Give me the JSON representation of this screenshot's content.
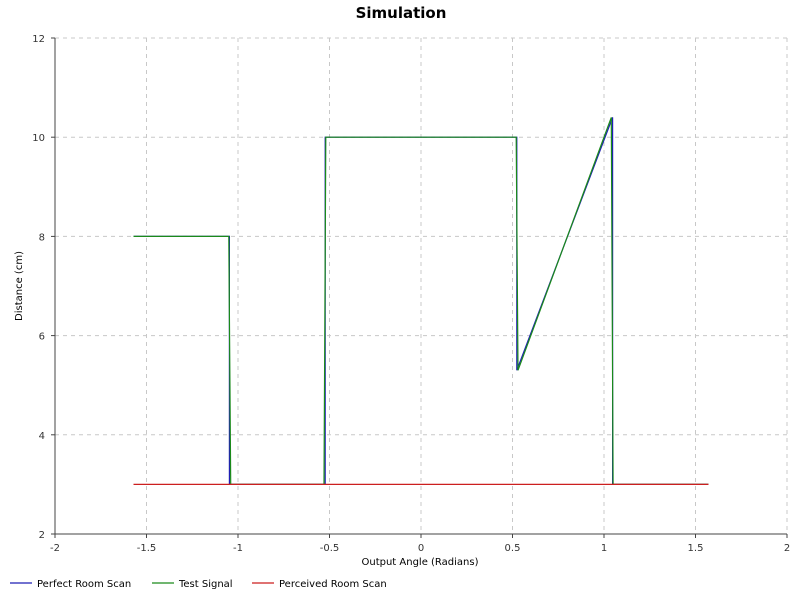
{
  "chart_data": {
    "type": "line",
    "title": "Simulation",
    "xlabel": "Output Angle (Radians)",
    "ylabel": "Distance (cm)",
    "xlim": [
      -2,
      2
    ],
    "ylim": [
      2,
      12
    ],
    "xticks": [
      -2,
      -1.5,
      -1,
      -0.5,
      0,
      0.5,
      1,
      1.5,
      2
    ],
    "xtick_labels": [
      "-2",
      "-1.5",
      "-1",
      "-0.5",
      "0",
      "0.5",
      "1",
      "1.5",
      "2"
    ],
    "yticks": [
      2,
      4,
      6,
      8,
      10,
      12
    ],
    "ytick_labels": [
      "2",
      "4",
      "6",
      "8",
      "10",
      "12"
    ],
    "grid": true,
    "legend_placement": "bottom",
    "series": [
      {
        "name": "Perfect Room Scan",
        "color": "#1f1fb4",
        "points": [
          [
            -1.5708,
            8
          ],
          [
            -1.0472,
            8
          ],
          [
            -1.0472,
            3
          ],
          [
            -0.5236,
            3
          ],
          [
            -0.5236,
            10
          ],
          [
            0.5236,
            10
          ],
          [
            0.5236,
            5.3
          ],
          [
            1.0472,
            10.4
          ],
          [
            1.0472,
            3
          ],
          [
            1.5708,
            3
          ]
        ]
      },
      {
        "name": "Test Signal",
        "color": "#1a8a1a",
        "points": [
          [
            -1.5708,
            8
          ],
          [
            -1.05,
            8
          ],
          [
            -1.04,
            3
          ],
          [
            -0.53,
            3
          ],
          [
            -0.52,
            10
          ],
          [
            0.52,
            10
          ],
          [
            0.53,
            5.3
          ],
          [
            1.04,
            10.4
          ],
          [
            1.05,
            3
          ],
          [
            1.5708,
            3
          ]
        ]
      },
      {
        "name": "Perceived Room Scan",
        "color": "#cc1f1f",
        "points": [
          [
            -1.5708,
            3
          ],
          [
            1.5708,
            3
          ]
        ]
      }
    ]
  }
}
